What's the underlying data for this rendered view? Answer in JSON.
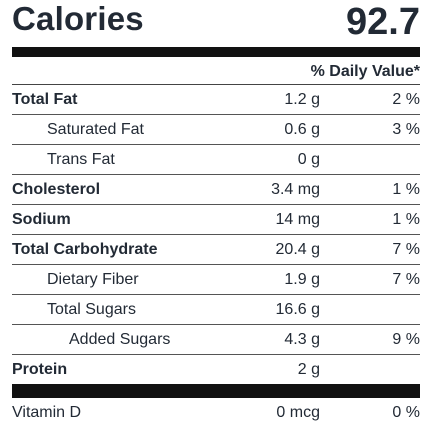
{
  "calories": {
    "label": "Calories",
    "value": "92.7"
  },
  "header": {
    "daily_value_label": "% Daily Value*"
  },
  "nutrients": [
    {
      "name": "Total Fat",
      "amount": "1.2 g",
      "dv": "2 %"
    },
    {
      "name": "Saturated Fat",
      "amount": "0.6 g",
      "dv": "3 %"
    },
    {
      "name": "Trans Fat",
      "amount": "0 g",
      "dv": ""
    },
    {
      "name": "Cholesterol",
      "amount": "3.4 mg",
      "dv": "1 %"
    },
    {
      "name": "Sodium",
      "amount": "14 mg",
      "dv": "1 %"
    },
    {
      "name": "Total Carbohydrate",
      "amount": "20.4 g",
      "dv": "7 %"
    },
    {
      "name": "Dietary Fiber",
      "amount": "1.9 g",
      "dv": "7 %"
    },
    {
      "name": "Total Sugars",
      "amount": "16.6 g",
      "dv": ""
    },
    {
      "name": "Added Sugars",
      "amount": "4.3 g",
      "dv": "9 %"
    },
    {
      "name": "Protein",
      "amount": "2 g",
      "dv": ""
    }
  ],
  "vitamins": [
    {
      "name": "Vitamin D",
      "amount": "0 mcg",
      "dv": "0 %"
    }
  ]
}
